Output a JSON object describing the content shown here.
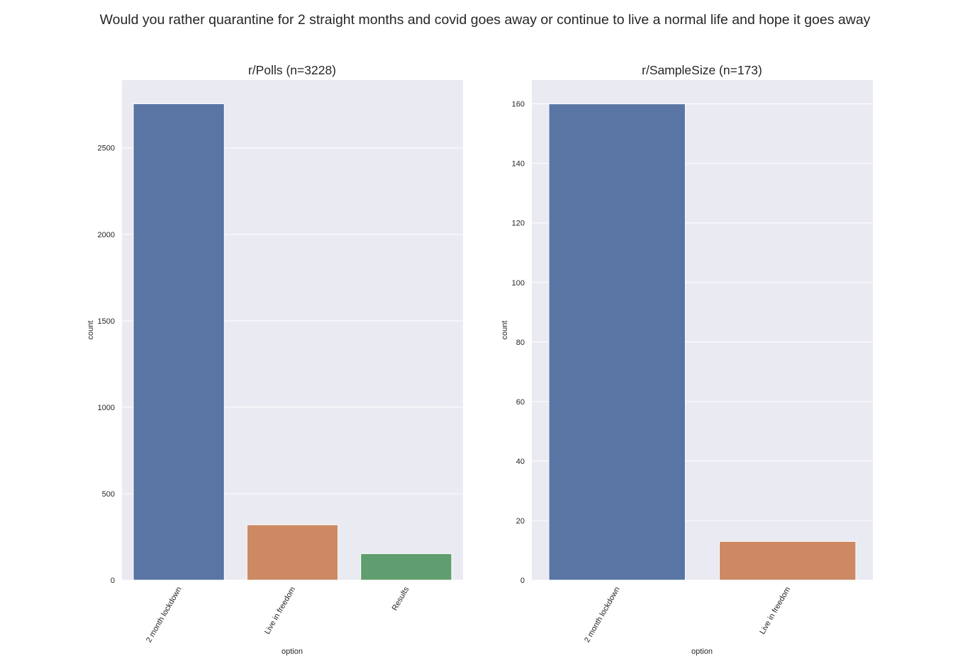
{
  "figure": {
    "suptitle": "Would you rather quarantine for 2 straight months and covid goes away or continue to live a normal life and hope it goes away"
  },
  "chart_data": [
    {
      "type": "bar",
      "title": "r/Polls (n=3228)",
      "xlabel": "option",
      "ylabel": "count",
      "categories": [
        "2 month lockdown",
        "Live in freedom",
        "Results"
      ],
      "values": [
        2755,
        320,
        153
      ],
      "colors": [
        "#5975a4",
        "#cc8963",
        "#5f9e6e"
      ],
      "ylim": [
        0,
        2892
      ],
      "yticks": [
        0,
        500,
        1000,
        1500,
        2000,
        2500
      ],
      "grid": true,
      "legend": "none"
    },
    {
      "type": "bar",
      "title": "r/SampleSize (n=173)",
      "xlabel": "option",
      "ylabel": "count",
      "categories": [
        "2 month lockdown",
        "Live in freedom"
      ],
      "values": [
        160,
        13
      ],
      "colors": [
        "#5975a4",
        "#cc8963"
      ],
      "ylim": [
        0,
        168
      ],
      "yticks": [
        0,
        20,
        40,
        60,
        80,
        100,
        120,
        140,
        160
      ],
      "grid": true,
      "legend": "none"
    }
  ]
}
